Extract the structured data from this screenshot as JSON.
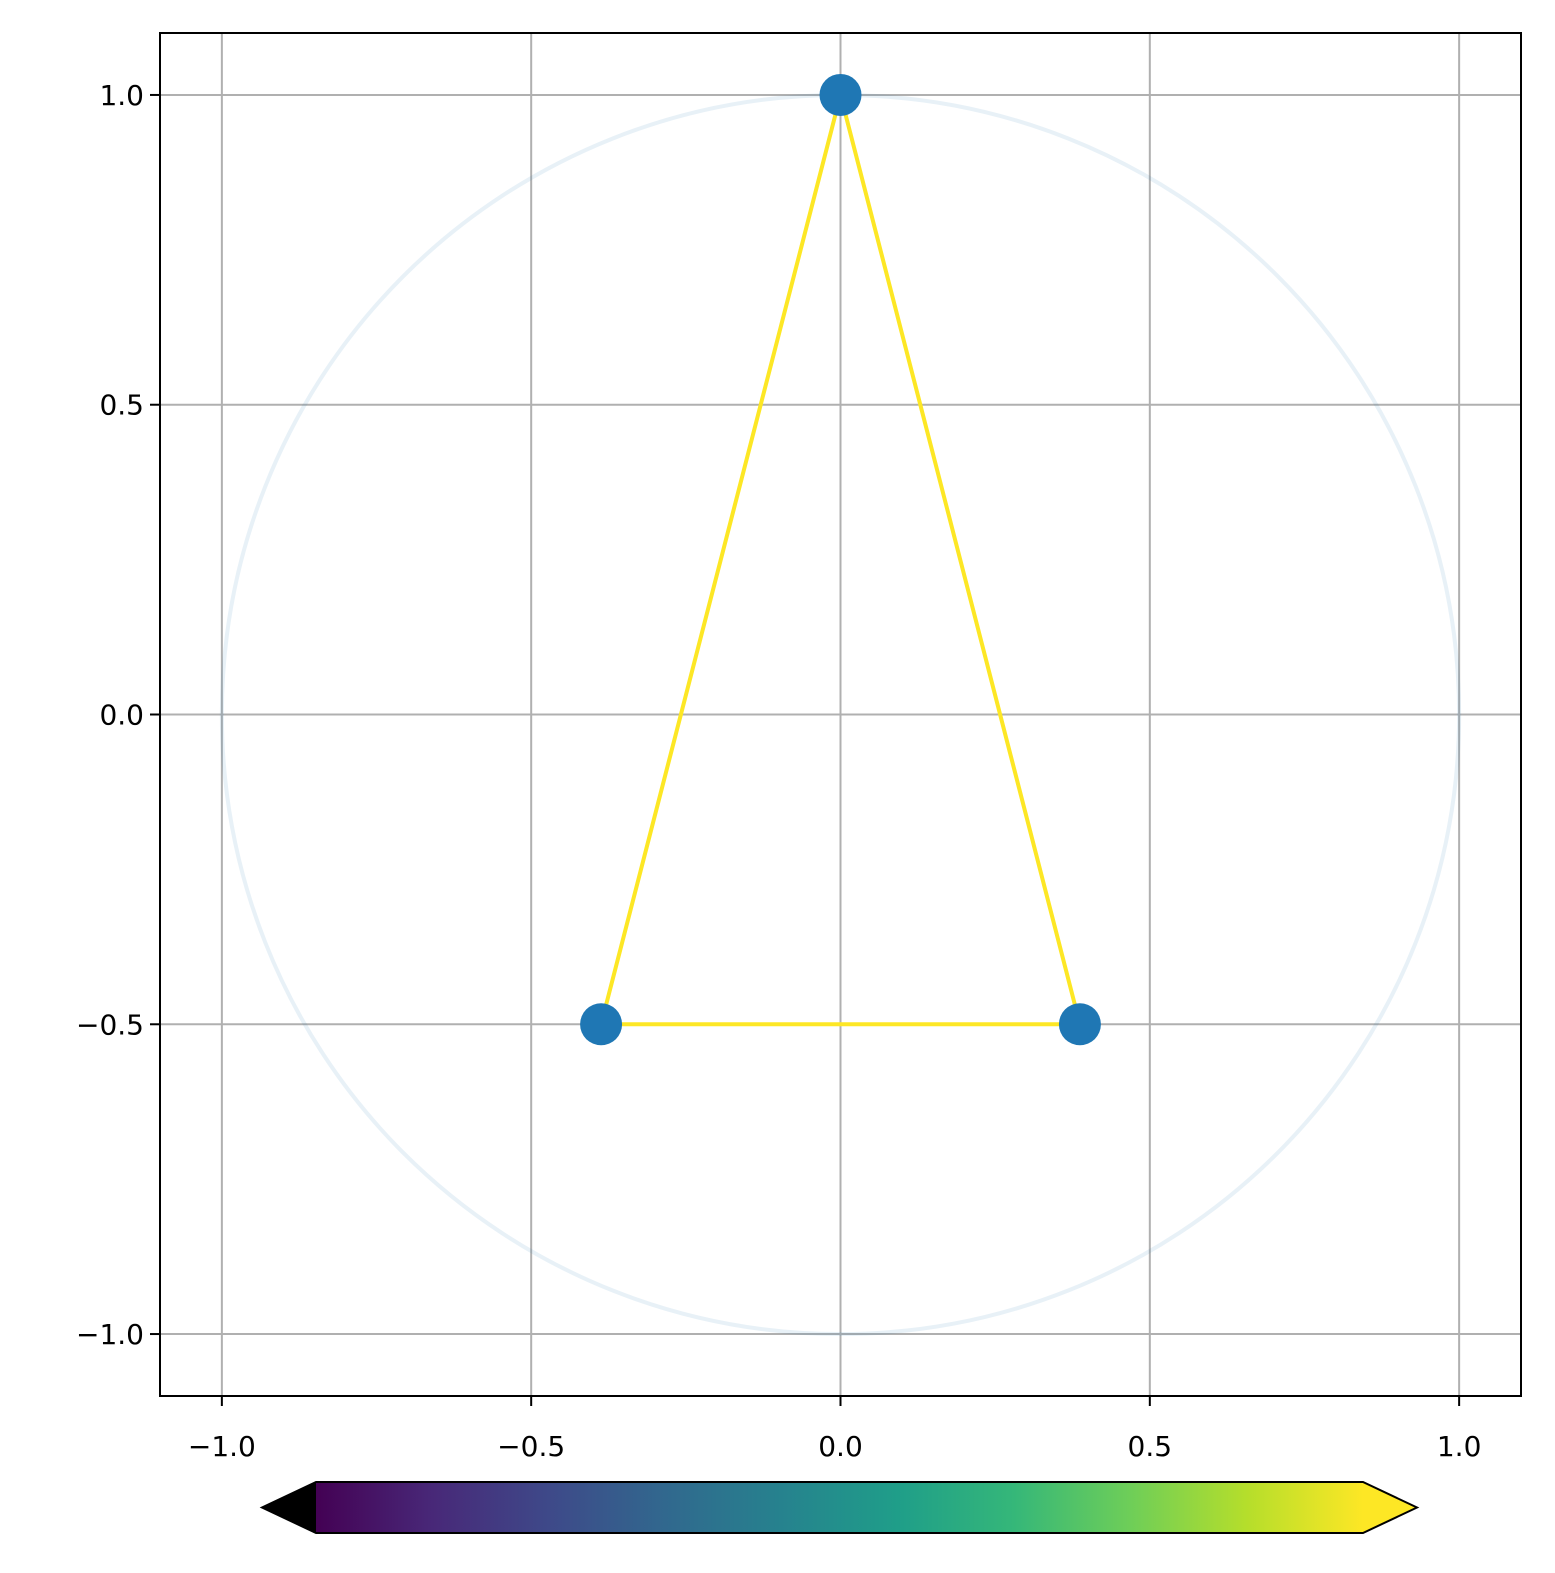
{
  "chart_data": {
    "type": "scatter",
    "xlim": [
      -1.1,
      1.1
    ],
    "ylim": [
      -1.1,
      1.1
    ],
    "xticks": [
      {
        "value": -1,
        "label": "−1.0"
      },
      {
        "value": -0.5,
        "label": "−0.5"
      },
      {
        "value": 0,
        "label": "0.0"
      },
      0.5,
      {
        "value": 1,
        "label": "1.0"
      }
    ],
    "yticks": [
      {
        "value": -1,
        "label": "−1.0"
      },
      {
        "value": -0.5,
        "label": "−0.5"
      },
      {
        "value": 0,
        "label": "0.0"
      },
      0.5,
      {
        "value": 1,
        "label": "1.0"
      }
    ],
    "grid": true,
    "circle": {
      "cx": 0,
      "cy": 0,
      "r": 1,
      "color": "#1f77b4",
      "opacity": 0.1
    },
    "polygon": {
      "x": [
        0,
        -0.387,
        0.387,
        0
      ],
      "y": [
        1,
        -0.5,
        -0.5,
        1
      ],
      "color": "#fde725"
    },
    "points": {
      "x": [
        0,
        -0.387,
        0.387
      ],
      "y": [
        1,
        -0.5,
        -0.5
      ],
      "color": "#1f77b4"
    },
    "colorbar": {
      "cmap": [
        "#440154",
        "#482878",
        "#3e4989",
        "#31688e",
        "#26828e",
        "#1f9e89",
        "#35b779",
        "#6ece58",
        "#b5de2b",
        "#fde725"
      ],
      "under": "#000000",
      "over": "#fde725"
    }
  }
}
